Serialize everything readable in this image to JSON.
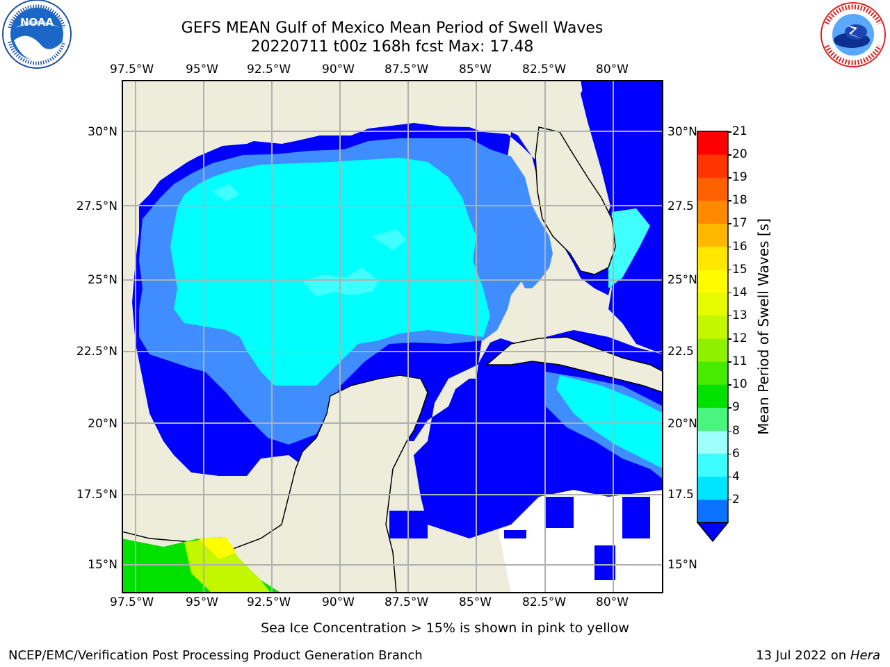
{
  "header": {
    "title": "GEFS MEAN Gulf of Mexico Mean Period of Swell Waves",
    "subtitle": "20220711 t00z 168h fcst   Max: 17.48"
  },
  "logos": {
    "left": {
      "label": "NOAA",
      "ring_text": "NATIONAL OCEANIC AND ATMOSPHERIC ADMINISTRATION · U.S. DEPARTMENT OF COMMERCE"
    },
    "right": {
      "ring_text": "NATIONAL WEATHER SERVICE"
    }
  },
  "map": {
    "lon_labels": [
      "97.5°W",
      "95°W",
      "92.5°W",
      "90°W",
      "87.5°W",
      "85°W",
      "82.5°W",
      "80°W"
    ],
    "lat_labels_left": [
      "30°N",
      "27.5°N",
      "25°N",
      "22.5°N",
      "20°N",
      "17.5°N",
      "15°N"
    ],
    "lat_labels_right": [
      "30°N",
      "27.5",
      "25°N",
      "22.5",
      "20°N",
      "17.5",
      "15°N"
    ],
    "colors": {
      "land": "#eeeddc",
      "grid": "#b0b0b0",
      "c2": "#0000ff",
      "c4": "#3f8dff",
      "c6": "#00ffff",
      "c8": "#3fffff"
    }
  },
  "colorbar": {
    "label": "Mean Period of Swell Waves [s]",
    "levels": [
      "21",
      "20",
      "19",
      "18",
      "17",
      "16",
      "15",
      "14",
      "13",
      "12",
      "11",
      "10",
      "9",
      "8",
      "6",
      "4",
      "2"
    ],
    "colors_low_to_high": [
      "#0a72ff",
      "#00e5ff",
      "#3cfcff",
      "#9ffffd",
      "#4af57f",
      "#00e100",
      "#47eb00",
      "#8ff000",
      "#c3f700",
      "#e6fa00",
      "#fffb00",
      "#ffe700",
      "#ffb700",
      "#ff8900",
      "#ff6100",
      "#ff3500",
      "#ff0000"
    ],
    "under_color": "#0000ff"
  },
  "footer": {
    "note": "Sea Ice Concentration > 15% is shown in pink to yellow",
    "credit": "NCEP/EMC/Verification Post Processing Product Generation Branch",
    "date": "13 Jul 2022 on ",
    "machine": "Hera"
  }
}
